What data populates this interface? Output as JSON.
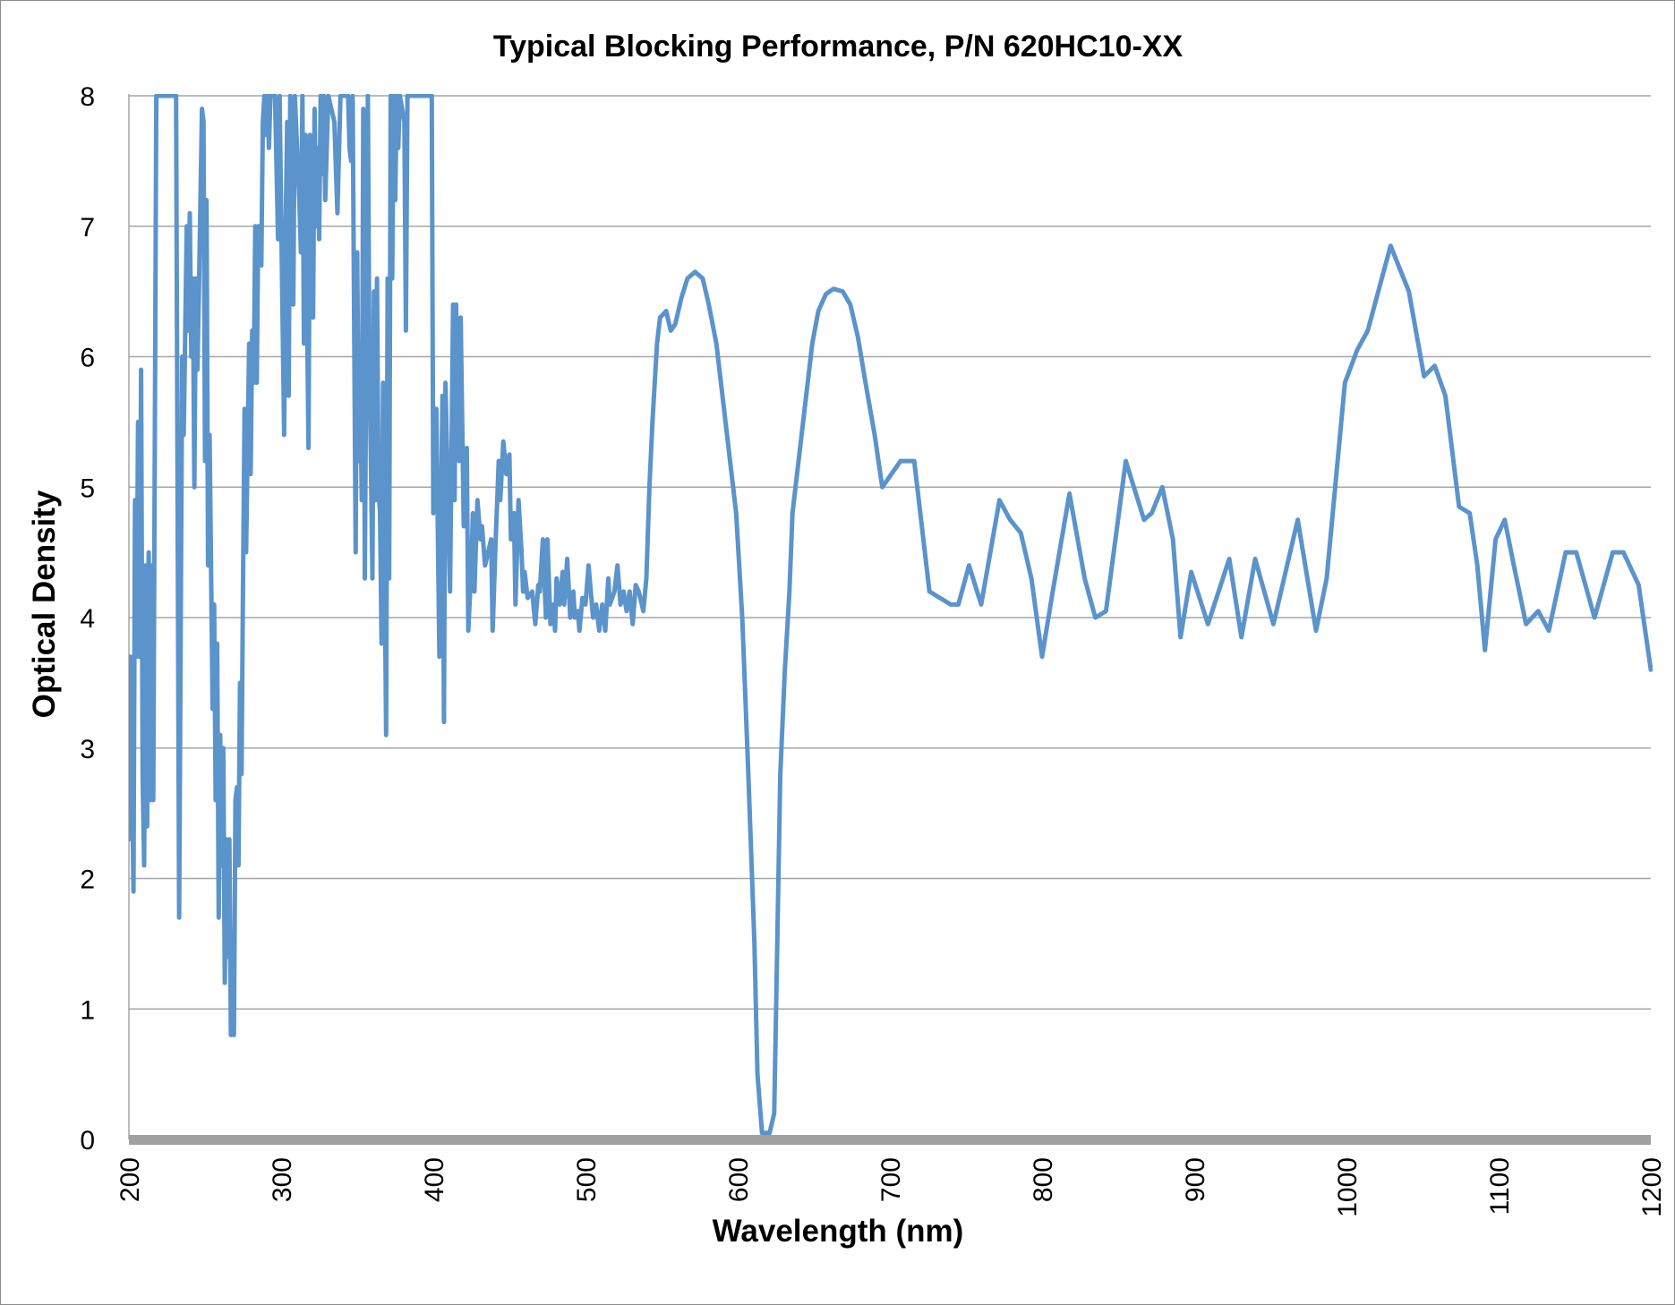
{
  "chart_data": {
    "type": "line",
    "title": "Typical Blocking Performance, P/N 620HC10-XX",
    "xlabel": "Wavelength (nm)",
    "ylabel": "Optical Density",
    "xlim": [
      200,
      1200
    ],
    "ylim": [
      0,
      8
    ],
    "xticks": [
      "200",
      "300",
      "400",
      "500",
      "600",
      "700",
      "800",
      "900",
      "1000",
      "1100",
      "1200"
    ],
    "yticks": [
      "0",
      "1",
      "2",
      "3",
      "4",
      "5",
      "6",
      "7",
      "8"
    ],
    "grid": "horizontal",
    "legend": "none",
    "colors": {
      "line": "#5B93CB",
      "grid": "#A6A6A6",
      "baseline": "#A0A0A0"
    },
    "series": [
      {
        "x": [
          200,
          201,
          203,
          204,
          205,
          206,
          207,
          208,
          209,
          210,
          211,
          212,
          213,
          214,
          215,
          216,
          218,
          231,
          233,
          235,
          236,
          238,
          239,
          240,
          241,
          242,
          243,
          244,
          245,
          246,
          248,
          249,
          250,
          251,
          252,
          253,
          255,
          256,
          257,
          258,
          259,
          260,
          261,
          262,
          263,
          264,
          265,
          266,
          267,
          268,
          269,
          270,
          271,
          272,
          273,
          274,
          275,
          276,
          277,
          279,
          280,
          281,
          282,
          283,
          284,
          285,
          287,
          288,
          289,
          290,
          291,
          292,
          293,
          296,
          298,
          299,
          302,
          303,
          304,
          305,
          306,
          307,
          308,
          309,
          312,
          313,
          314,
          315,
          316,
          317,
          318,
          319,
          321,
          322,
          323,
          324,
          325,
          326,
          327,
          328,
          329,
          331,
          335,
          337,
          339,
          344,
          345,
          346,
          347,
          349,
          350,
          351,
          352,
          353,
          354,
          355,
          357,
          358,
          359,
          360,
          361,
          362,
          363,
          364,
          365,
          366,
          367,
          368,
          369,
          370,
          371,
          372,
          373,
          374,
          375,
          376,
          377,
          378,
          381,
          382,
          383,
          388,
          394,
          398,
          399,
          400,
          402,
          404,
          406,
          407,
          408,
          411,
          413,
          414,
          415,
          417,
          418,
          420,
          422,
          423,
          425,
          426,
          427,
          429,
          431,
          432,
          434,
          438,
          439,
          441,
          443,
          444,
          446,
          448,
          450,
          451,
          453,
          454,
          456,
          458,
          459,
          460,
          462,
          465,
          467,
          469,
          470,
          472,
          474,
          475,
          477,
          479,
          480,
          481,
          483,
          485,
          486,
          488,
          490,
          492,
          493,
          495,
          496,
          498,
          500,
          502,
          505,
          507,
          509,
          511,
          513,
          515,
          516,
          519,
          521,
          523,
          525,
          527,
          529,
          531,
          533,
          535,
          538,
          540,
          542,
          544,
          547,
          549,
          553,
          556,
          559,
          563,
          567,
          572,
          577,
          581,
          586,
          590,
          594,
          599,
          603,
          607,
          611,
          613,
          616,
          621,
          624,
          626,
          628,
          631,
          634,
          636,
          641,
          645,
          649,
          653,
          658,
          663,
          669,
          674,
          679,
          684,
          690,
          695,
          707,
          716,
          726,
          733,
          740,
          745,
          752,
          760,
          772,
          779,
          786,
          793,
          800,
          807,
          818,
          828,
          835,
          842,
          855,
          867,
          872,
          879,
          886,
          891,
          898,
          909,
          923,
          931,
          940,
          952,
          968,
          980,
          987,
          999,
          1007,
          1014,
          1029,
          1041,
          1051,
          1058,
          1065,
          1074,
          1081,
          1086,
          1091,
          1098,
          1104,
          1110,
          1118,
          1126,
          1133,
          1144,
          1151,
          1163,
          1175,
          1182,
          1192,
          1200
        ],
        "y": [
          2.3,
          3.7,
          1.9,
          4.9,
          3.7,
          5.5,
          3.7,
          5.9,
          2.8,
          2.1,
          4.4,
          2.4,
          4.5,
          2.6,
          4.4,
          2.6,
          8,
          8,
          1.7,
          6,
          5.4,
          7,
          6.2,
          7.1,
          6,
          6.6,
          5,
          6.6,
          5.9,
          6.5,
          7.9,
          7.8,
          5.2,
          7.2,
          4.4,
          5.4,
          3.3,
          4.1,
          2.6,
          3.8,
          1.7,
          3.1,
          2.1,
          3.0,
          1.2,
          2.3,
          1.4,
          2.3,
          0.8,
          1.1,
          0.8,
          2.6,
          2.7,
          2.1,
          3.5,
          2.8,
          4.3,
          5.6,
          4.5,
          6.1,
          5.1,
          6.2,
          5.8,
          7,
          5.8,
          7,
          6.7,
          7.8,
          8,
          7.7,
          8,
          7.6,
          8,
          8,
          6.9,
          8,
          5.4,
          7,
          7.8,
          5.7,
          8,
          7,
          6.4,
          8,
          7.2,
          6.8,
          8,
          6.1,
          7.7,
          6.4,
          5.3,
          7.7,
          6.3,
          7.9,
          7,
          7.6,
          6.9,
          8,
          7.4,
          8,
          7.2,
          8,
          7.8,
          7.1,
          8,
          8,
          7.6,
          7.5,
          8,
          4.5,
          6.8,
          5.2,
          5.8,
          4.9,
          7.9,
          4.3,
          8,
          6,
          5.2,
          4.3,
          6.5,
          4.9,
          6.6,
          5,
          4.8,
          3.8,
          5.8,
          4.5,
          3.1,
          6.6,
          4.3,
          8,
          6.6,
          8,
          7.2,
          8,
          7.6,
          8,
          7.8,
          6.2,
          8,
          8,
          8,
          8,
          8,
          4.8,
          5.6,
          3.7,
          5.7,
          3.2,
          5.8,
          4.2,
          6.4,
          4.9,
          6.4,
          5.2,
          6.3,
          4.7,
          5.3,
          3.9,
          4.4,
          4.8,
          4.2,
          4.9,
          4.6,
          4.7,
          4.4,
          4.6,
          3.9,
          4.6,
          5.2,
          4.9,
          5.35,
          5.1,
          5.25,
          4.6,
          4.8,
          4.1,
          4.9,
          4.5,
          4.2,
          4.35,
          4.15,
          4.2,
          3.95,
          4.25,
          4.2,
          4.6,
          4.0,
          4.6,
          3.95,
          4.1,
          3.9,
          4.3,
          4.1,
          4.35,
          4.1,
          4.45,
          4.0,
          4.2,
          4.0,
          4.05,
          3.9,
          4.15,
          4.1,
          4.4,
          4.0,
          4.1,
          3.9,
          4.1,
          3.9,
          4.3,
          4.1,
          4.2,
          4.4,
          4.1,
          4.2,
          4.05,
          4.2,
          3.95,
          4.25,
          4.2,
          4.05,
          4.3,
          5.0,
          5.5,
          6.1,
          6.3,
          6.35,
          6.2,
          6.25,
          6.45,
          6.6,
          6.65,
          6.6,
          6.4,
          6.1,
          5.7,
          5.3,
          4.8,
          4.0,
          2.8,
          1.5,
          0.5,
          0.05,
          0.05,
          0.2,
          1.5,
          2.8,
          3.6,
          4.2,
          4.8,
          5.3,
          5.7,
          6.1,
          6.35,
          6.48,
          6.52,
          6.5,
          6.4,
          6.15,
          5.8,
          5.4,
          5.0,
          5.2,
          5.2,
          4.2,
          4.15,
          4.1,
          4.1,
          4.4,
          4.1,
          4.9,
          4.75,
          4.65,
          4.3,
          3.7,
          4.2,
          4.95,
          4.3,
          4.0,
          4.05,
          5.2,
          4.75,
          4.8,
          5.0,
          4.6,
          3.85,
          4.35,
          3.95,
          4.45,
          3.85,
          4.45,
          3.95,
          4.75,
          3.9,
          4.3,
          5.8,
          6.05,
          6.2,
          6.85,
          6.5,
          5.85,
          5.93,
          5.7,
          4.85,
          4.8,
          4.4,
          3.75,
          4.6,
          4.75,
          4.4,
          3.95,
          4.05,
          3.9,
          4.5,
          4.5,
          4.0,
          4.5,
          4.5,
          4.25,
          3.6
        ]
      }
    ]
  }
}
